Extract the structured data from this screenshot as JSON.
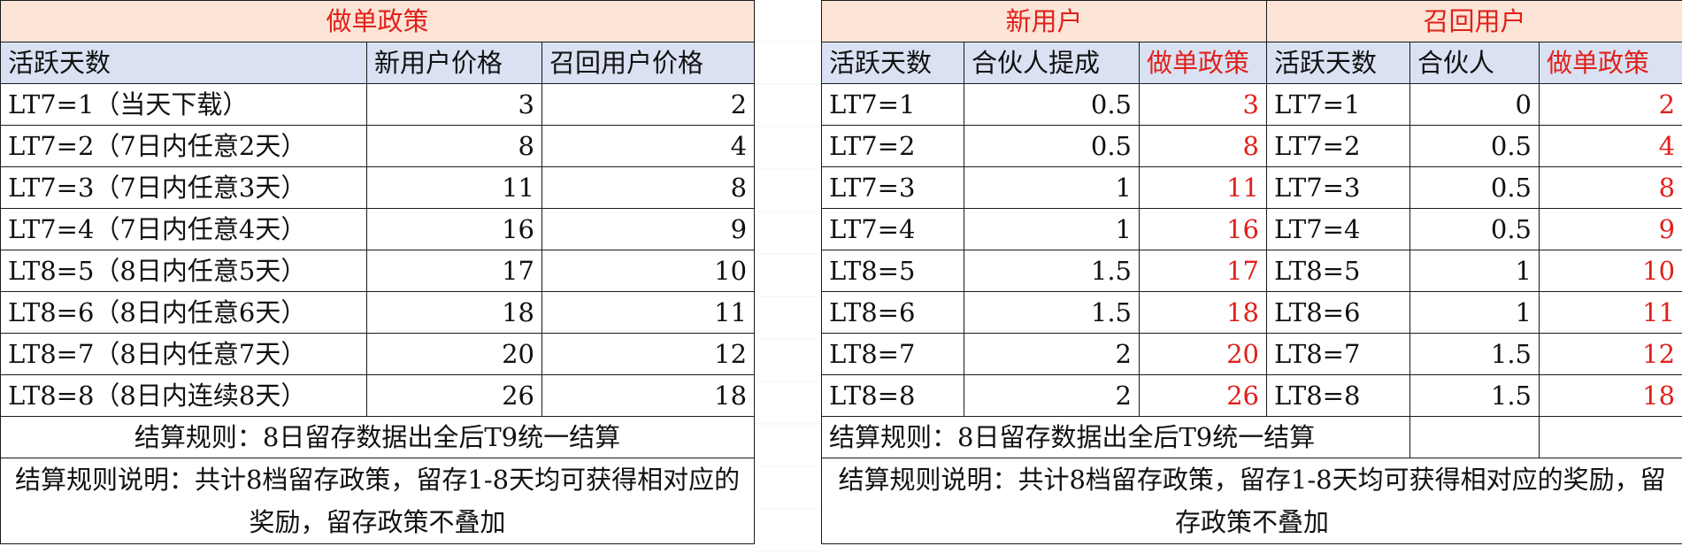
{
  "left_table": {
    "title": "做单政策",
    "headers": [
      "活跃天数",
      "新用户价格",
      "召回用户价格"
    ],
    "rows": [
      [
        "LT7=1（当天下载）",
        "3",
        "2"
      ],
      [
        "LT7=2（7日内任意2天）",
        "8",
        "4"
      ],
      [
        "LT7=3（7日内任意3天）",
        "11",
        "8"
      ],
      [
        "LT7=4（7日内任意4天）",
        "16",
        "9"
      ],
      [
        "LT8=5（8日内任意5天）",
        "17",
        "10"
      ],
      [
        "LT8=6（8日内任意6天）",
        "18",
        "11"
      ],
      [
        "LT8=7（8日内任意7天）",
        "20",
        "12"
      ],
      [
        "LT8=8（8日内连续8天）",
        "26",
        "18"
      ]
    ],
    "rule": "结算规则：8日留存数据出全后T9统一结算",
    "note": "结算规则说明：共计8档留存政策，留存1-8天均可获得相对应的奖励，留存政策不叠加"
  },
  "right_table": {
    "group_new": "新用户",
    "group_recall": "召回用户",
    "headers": [
      "活跃天数",
      "合伙人提成",
      "做单政策",
      "活跃天数",
      "合伙人",
      "做单政策"
    ],
    "rows": [
      [
        "LT7=1",
        "0.5",
        "3",
        "LT7=1",
        "0",
        "2"
      ],
      [
        "LT7=2",
        "0.5",
        "8",
        "LT7=2",
        "0.5",
        "4"
      ],
      [
        "LT7=3",
        "1",
        "11",
        "LT7=3",
        "0.5",
        "8"
      ],
      [
        "LT7=4",
        "1",
        "16",
        "LT7=4",
        "0.5",
        "9"
      ],
      [
        "LT8=5",
        "1.5",
        "17",
        "LT8=5",
        "1",
        "10"
      ],
      [
        "LT8=6",
        "1.5",
        "18",
        "LT8=6",
        "1",
        "11"
      ],
      [
        "LT8=7",
        "2",
        "20",
        "LT8=7",
        "1.5",
        "12"
      ],
      [
        "LT8=8",
        "2",
        "26",
        "LT8=8",
        "1.5",
        "18"
      ]
    ],
    "rule": "结算规则：8日留存数据出全后T9统一结算",
    "note": "结算规则说明：共计8档留存政策，留存1-8天均可获得相对应的奖励，留存政策不叠加"
  },
  "colors": {
    "title_bg": "#fce4d6",
    "header_bg": "#d9e1f2",
    "accent_red": "#e0211b"
  }
}
